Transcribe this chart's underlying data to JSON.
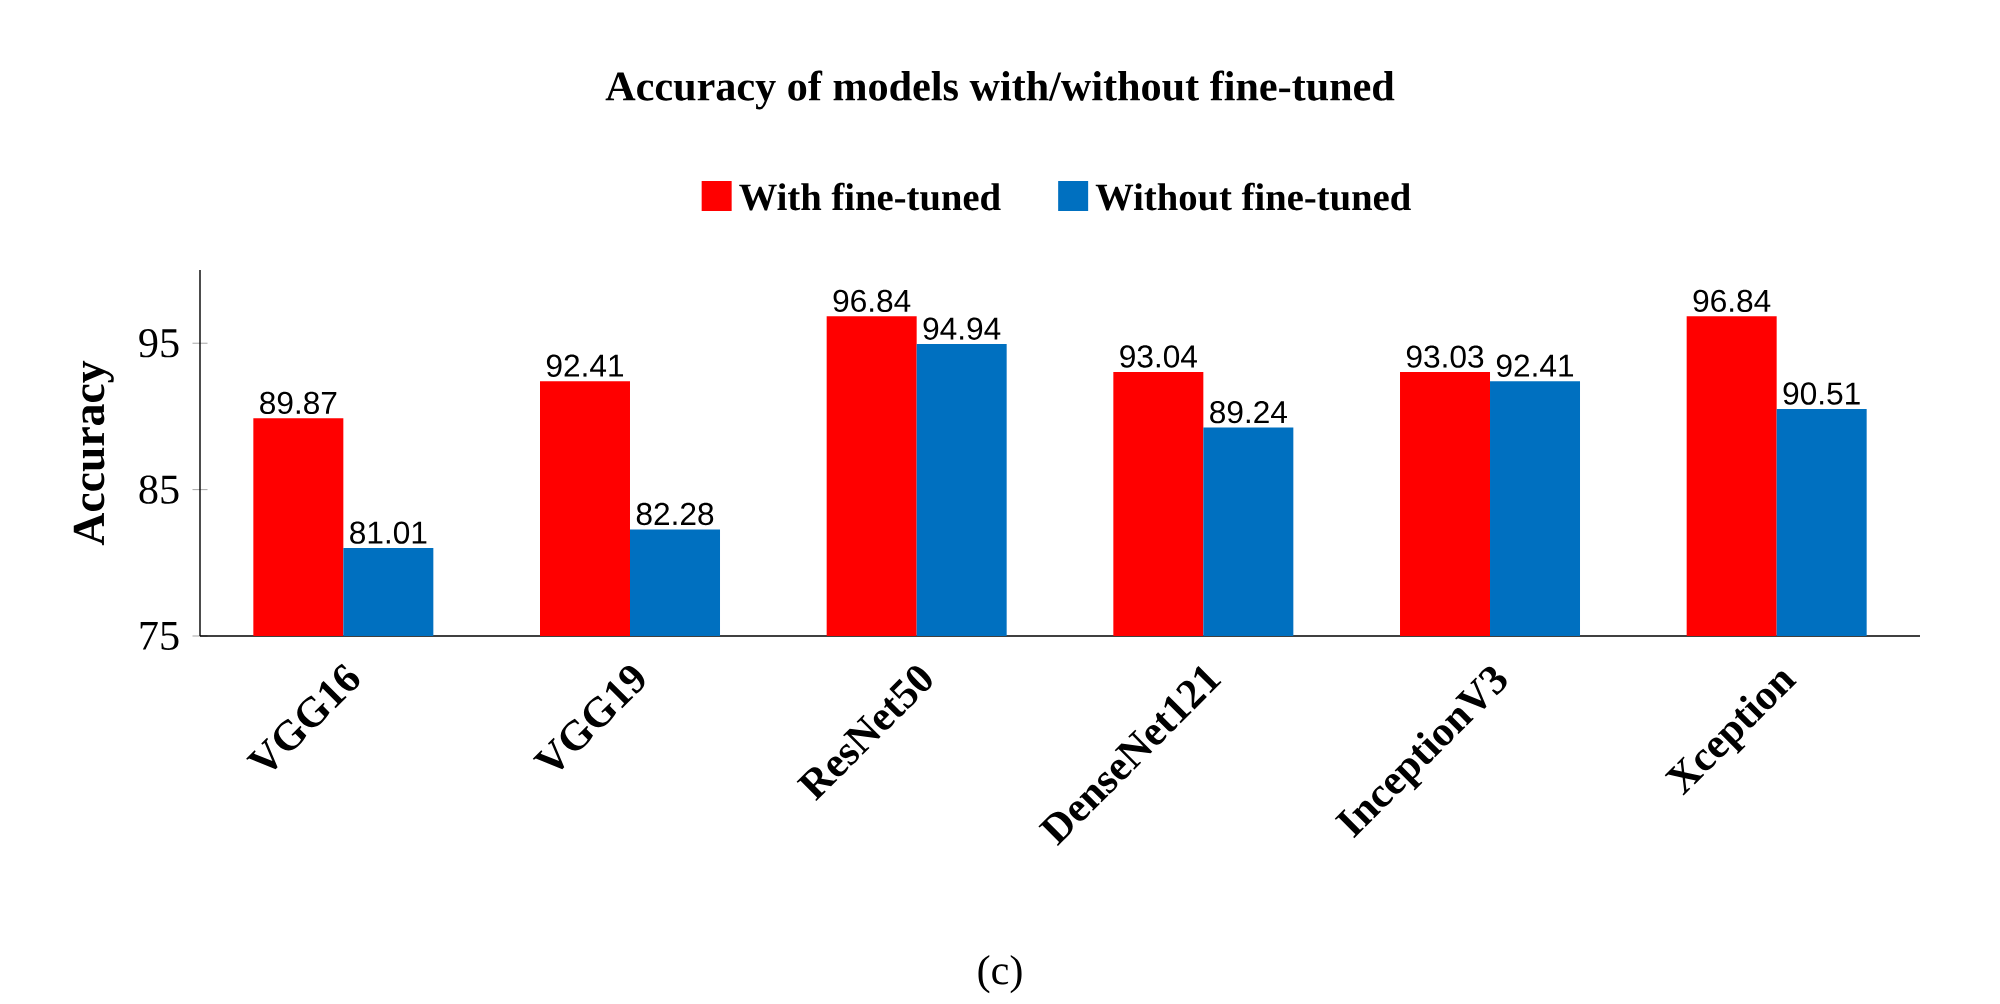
{
  "chart_data": {
    "type": "bar",
    "title": "Accuracy of models with/without fine-tuned",
    "ylabel": "Accuracy",
    "categories": [
      "VGG16",
      "VGG19",
      "ResNet50",
      "DenseNet121",
      "InceptionV3",
      "Xception"
    ],
    "series": [
      {
        "name": "With fine-tuned",
        "color": "#ff0000",
        "values": [
          89.87,
          92.41,
          96.84,
          93.04,
          93.03,
          96.84
        ],
        "value_labels": [
          "89.87",
          "92.41",
          "96.84",
          "93.04",
          "93.03",
          "96.84"
        ]
      },
      {
        "name": "Without fine-tuned",
        "color": "#0070c0",
        "values": [
          81.01,
          82.28,
          94.94,
          89.24,
          92.41,
          90.51
        ],
        "value_labels": [
          "81.01",
          "82.28",
          "94.94",
          "89.24",
          "92.41",
          "90.51"
        ]
      }
    ],
    "ylim": [
      75,
      100
    ],
    "yticks": [
      75,
      85,
      95
    ],
    "legend": "top",
    "annotations": [
      "(c)"
    ]
  }
}
